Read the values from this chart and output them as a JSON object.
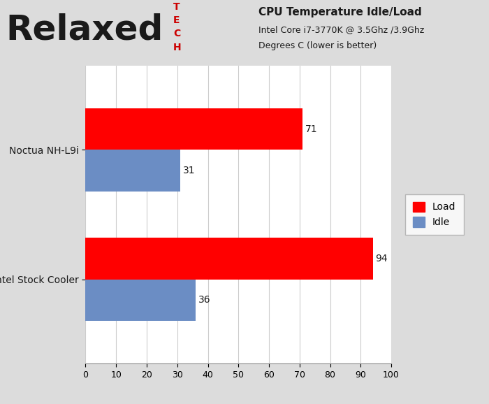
{
  "categories": [
    "Intel Stock Cooler",
    "Noctua NH-L9i"
  ],
  "load_values": [
    94,
    71
  ],
  "idle_values": [
    36,
    31
  ],
  "load_color": "#FF0000",
  "idle_color": "#6B8DC4",
  "bar_height": 0.32,
  "xlim": [
    0,
    100
  ],
  "xticks": [
    0,
    10,
    20,
    30,
    40,
    50,
    60,
    70,
    80,
    90,
    100
  ],
  "title_line1": "CPU Temperature Idle/Load",
  "title_line2": "Intel Core i7-3770K @ 3.5Ghz /3.9Ghz",
  "title_line3": "Degrees C (lower is better)",
  "header_bg": "#DCDCDC",
  "plot_bg": "#FFFFFF",
  "grid_color": "#CCCCCC",
  "label_fontsize": 10,
  "tick_fontsize": 9,
  "value_fontsize": 10,
  "legend_fontsize": 10,
  "title_fontsize": 11,
  "relaxed_fontsize": 36,
  "tech_fontsize": 10
}
